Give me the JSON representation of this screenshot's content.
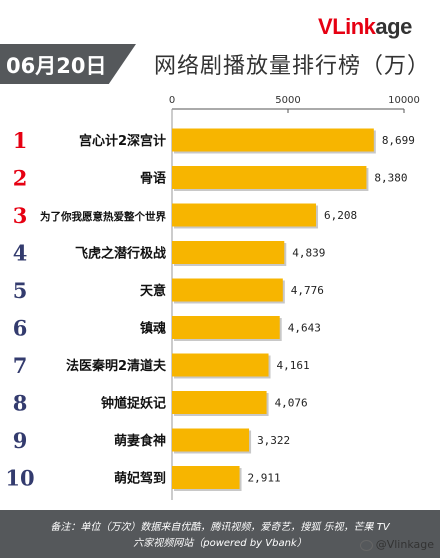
{
  "brand": {
    "v": "V",
    "link": "Link",
    "age": "age"
  },
  "date": "06月20日",
  "title": "网络剧播放量排行榜（万）",
  "footer": {
    "line1": "备注：单位（万次）数据来自优酷，腾讯视频，爱奇艺，搜狐 乐视，芒果 TV",
    "line2": "六家视频网站（powered by Vbank）"
  },
  "watermark": "@Vlinkage",
  "colors": {
    "bar": "#f7b500",
    "rank_top": "#e60012",
    "rank_rest": "#333b6e",
    "axis": "#555555"
  },
  "chart_data": {
    "type": "bar",
    "orientation": "horizontal",
    "xlim": [
      0,
      10000
    ],
    "ticks": [
      0,
      5000,
      10000
    ],
    "ranks": [
      "1",
      "2",
      "3",
      "4",
      "5",
      "6",
      "7",
      "8",
      "9",
      "10"
    ],
    "categories": [
      "宫心计2深宫计",
      "骨语",
      "为了你我愿意热爱整个世界",
      "飞虎之潜行极战",
      "天意",
      "镇魂",
      "法医秦明2清道夫",
      "钟馗捉妖记",
      "萌妻食神",
      "萌妃驾到"
    ],
    "values": [
      8699,
      8380,
      6208,
      4839,
      4776,
      4643,
      4161,
      4076,
      3322,
      2911
    ],
    "value_labels": [
      "8,699",
      "8,380",
      "6,208",
      "4,839",
      "4,776",
      "4,643",
      "4,161",
      "4,076",
      "3,322",
      "2,911"
    ]
  }
}
